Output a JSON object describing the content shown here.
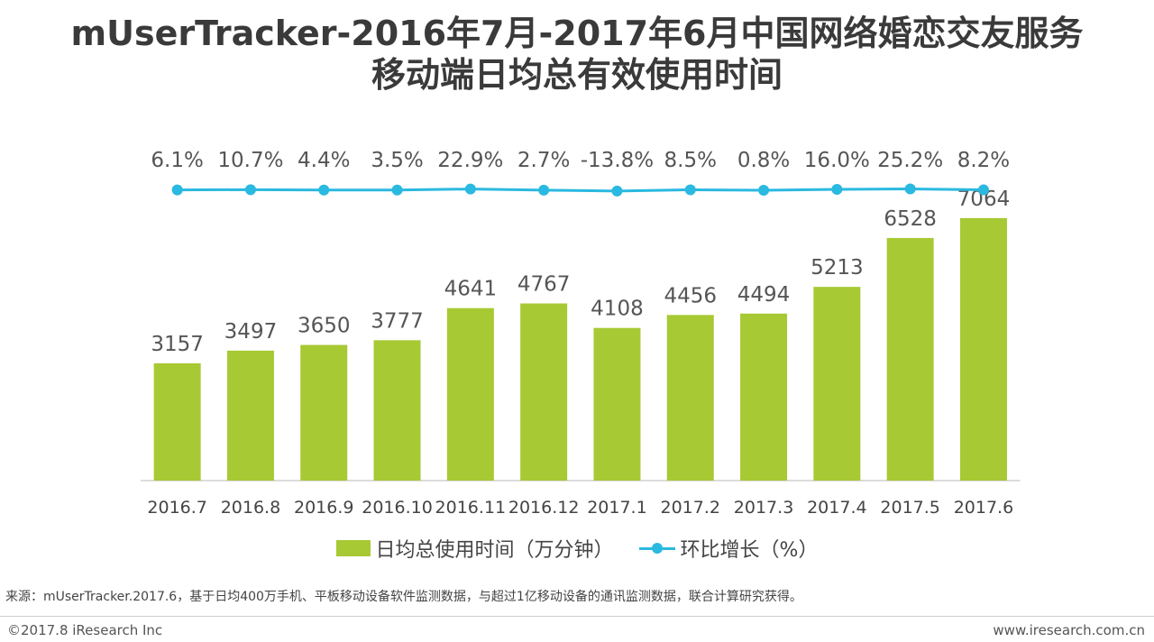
{
  "title_line1": "mUserTracker-2016年7月-2017年6月中国网络婚恋交友服务",
  "title_line2": "移动端日均总有效使用时间",
  "chart_data": {
    "type": "bar",
    "categories": [
      "2016.7",
      "2016.8",
      "2016.9",
      "2016.10",
      "2016.11",
      "2016.12",
      "2017.1",
      "2017.2",
      "2017.3",
      "2017.4",
      "2017.5",
      "2017.6"
    ],
    "series": [
      {
        "name": "日均总使用时间（万分钟）",
        "type": "bar",
        "values": [
          3157,
          3497,
          3650,
          3777,
          4641,
          4767,
          4108,
          4456,
          4494,
          5213,
          6528,
          7064
        ]
      },
      {
        "name": "环比增长（%）",
        "type": "line",
        "values": [
          6.1,
          10.7,
          4.4,
          3.5,
          22.9,
          2.7,
          -13.8,
          8.5,
          0.8,
          16.0,
          25.2,
          8.2
        ],
        "labels": [
          "6.1%",
          "10.7%",
          "4.4%",
          "3.5%",
          "22.9%",
          "2.7%",
          "-13.8%",
          "8.5%",
          "0.8%",
          "16.0%",
          "25.2%",
          "8.2%"
        ]
      }
    ],
    "title": "mUserTracker-2016年7月-2017年6月中国网络婚恋交友服务移动端日均总有效使用时间",
    "xlabel": "",
    "ylabel": "",
    "ylim": [
      0,
      7400
    ]
  },
  "legend": {
    "bar_label": "日均总使用时间（万分钟）",
    "line_label": "环比增长（%）"
  },
  "colors": {
    "bar": "#a7c933",
    "line": "#2ab9e0"
  },
  "source": "来源：mUserTracker.2017.6，基于日均400万手机、平板移动设备软件监测数据，与超过1亿移动设备的通讯监测数据，联合计算研究获得。",
  "footer": {
    "copyright": "©2017.8 iResearch Inc",
    "website": "www.iresearch.com.cn"
  }
}
